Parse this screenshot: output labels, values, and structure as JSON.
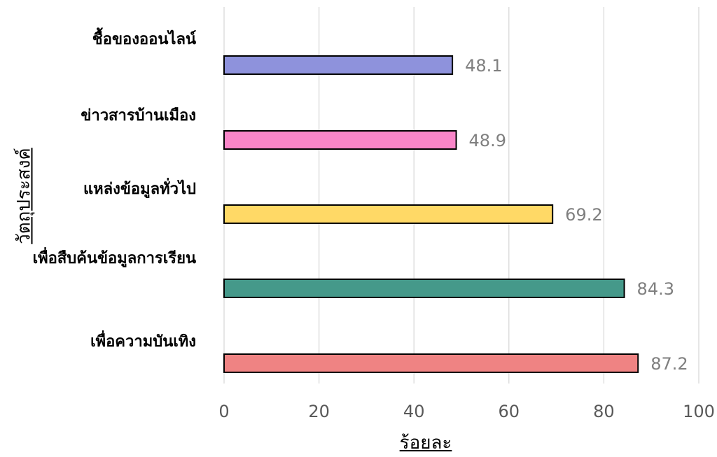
{
  "chart_data": {
    "type": "bar",
    "orientation": "horizontal",
    "categories": [
      "ชื้อของออนไลน์",
      "ข่าวสารบ้านเมือง",
      "แหล่งข้อมูลทั่วไป",
      "เพื่อสืบค้นข้อมูลการเรียน",
      "เพื่อความบันเทิง"
    ],
    "values": [
      48.1,
      48.9,
      69.2,
      84.3,
      87.2
    ],
    "bar_colors": [
      "#8e92dc",
      "#f985c8",
      "#ffd966",
      "#45998a",
      "#ef8383"
    ],
    "value_labels": [
      "48.1",
      "48.9",
      "69.2",
      "84.3",
      "87.2"
    ],
    "xlim": [
      0,
      100
    ],
    "x_ticks": [
      "0",
      "20",
      "40",
      "60",
      "80",
      "100"
    ],
    "xlabel": "ร้อยละ",
    "ylabel": "วัตถุประสงค์",
    "title": "",
    "grid": "vertical"
  }
}
